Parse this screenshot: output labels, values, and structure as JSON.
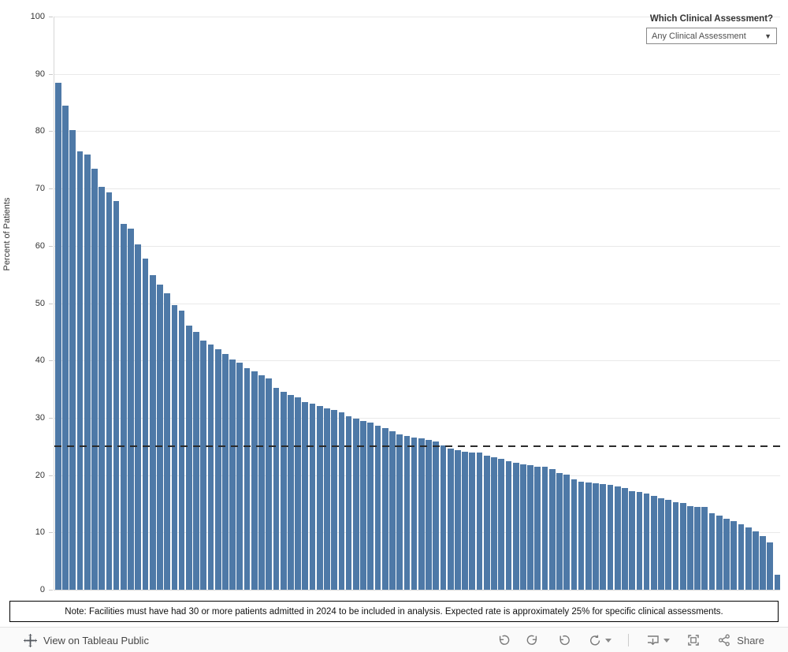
{
  "filter": {
    "label": "Which Clinical Assessment?",
    "selected": "Any Clinical Assessment"
  },
  "chart_data": {
    "type": "bar",
    "title": "",
    "xlabel": "",
    "ylabel": "Percent of Patients",
    "ylim": [
      0,
      100
    ],
    "yticks": [
      0,
      10,
      20,
      30,
      40,
      50,
      60,
      70,
      80,
      90,
      100
    ],
    "grid": true,
    "legend": "none",
    "reference_line": {
      "value": 25,
      "style": "dashed",
      "color": "#2b2b2b"
    },
    "x_meaning": "facilities sorted descending (no x tick labels shown)",
    "values": [
      88.4,
      84.5,
      80.2,
      76.5,
      75.9,
      73.4,
      70.3,
      69.3,
      67.8,
      63.8,
      63.0,
      60.3,
      57.8,
      54.9,
      53.2,
      51.7,
      49.7,
      48.7,
      46.1,
      45.0,
      43.4,
      42.8,
      41.9,
      41.1,
      40.2,
      39.6,
      38.6,
      38.1,
      37.4,
      36.9,
      35.2,
      34.5,
      34.0,
      33.6,
      32.7,
      32.5,
      32.0,
      31.7,
      31.3,
      31.0,
      30.3,
      29.9,
      29.5,
      29.1,
      28.6,
      28.2,
      27.7,
      27.1,
      26.8,
      26.6,
      26.4,
      26.1,
      25.8,
      25.2,
      24.6,
      24.3,
      24.1,
      24.0,
      23.9,
      23.4,
      23.1,
      22.8,
      22.4,
      22.1,
      21.9,
      21.7,
      21.5,
      21.4,
      21.1,
      20.4,
      20.1,
      19.2,
      18.9,
      18.7,
      18.6,
      18.5,
      18.3,
      18.0,
      17.7,
      17.2,
      17.1,
      16.8,
      16.4,
      16.0,
      15.7,
      15.3,
      15.1,
      14.6,
      14.5,
      14.4,
      13.4,
      12.9,
      12.4,
      12.0,
      11.4,
      10.9,
      10.2,
      9.4,
      8.3,
      2.6
    ]
  },
  "note": {
    "text": "Note: Facilities must have had 30 or more patients admitted in 2024 to be included in analysis. Expected rate is approximately 25% for specific clinical assessments."
  },
  "footer": {
    "view_on_tableau_public": "View on Tableau Public",
    "share": "Share"
  },
  "colors": {
    "bar": "#4e79a7",
    "grid": "#e9e9e9",
    "axis_line": "#d7d7d7",
    "reference_line": "#2b2b2b",
    "icon": "#7a7a7a"
  }
}
